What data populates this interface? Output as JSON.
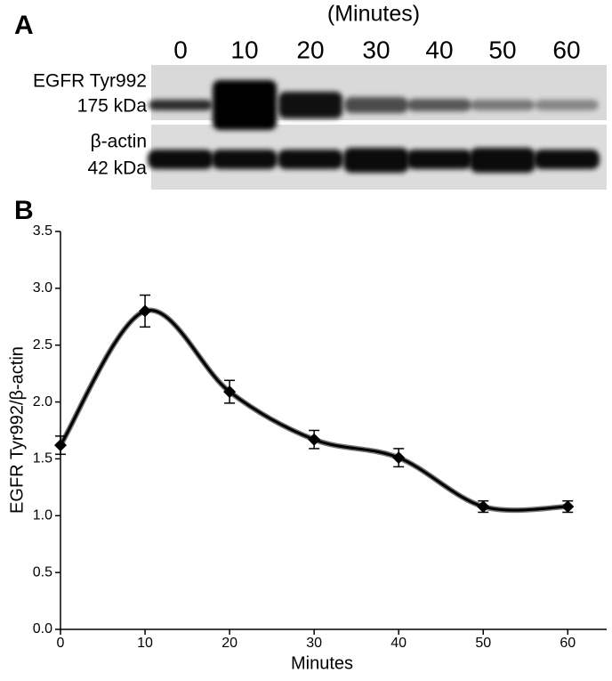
{
  "blot": {
    "panel_label": "A",
    "unit_label": "(Minutes)",
    "lanes": [
      "0",
      "10",
      "20",
      "30",
      "40",
      "50",
      "60"
    ],
    "rows": [
      {
        "name": "EGFR Tyr992",
        "size": "175 kDa"
      },
      {
        "name": "β-actin",
        "size": "42 kDa"
      }
    ]
  },
  "chart_data": {
    "type": "line",
    "panel_label": "B",
    "x_label": "Minutes",
    "y_label": "EGFR Tyr992/β-actin",
    "x": [
      0,
      10,
      20,
      30,
      40,
      50,
      60
    ],
    "series": [
      {
        "color": "#000000",
        "values": [
          1.62,
          2.8,
          2.09,
          1.67,
          1.51,
          1.08,
          1.08
        ],
        "errors": [
          0.08,
          0.14,
          0.1,
          0.08,
          0.08,
          0.05,
          0.05
        ]
      }
    ],
    "xlim": [
      0,
      64.6
    ],
    "xticks": [
      0,
      10,
      20,
      30,
      40,
      50,
      60
    ],
    "ylim": [
      0,
      3.5
    ],
    "yticks": [
      {
        "value": 0,
        "label": "0.0"
      },
      0.5,
      {
        "value": 1,
        "label": "1.0"
      },
      1.5,
      {
        "value": 2,
        "label": "2.0"
      },
      2.5,
      {
        "value": 3,
        "label": "3.0"
      },
      3.5
    ]
  }
}
